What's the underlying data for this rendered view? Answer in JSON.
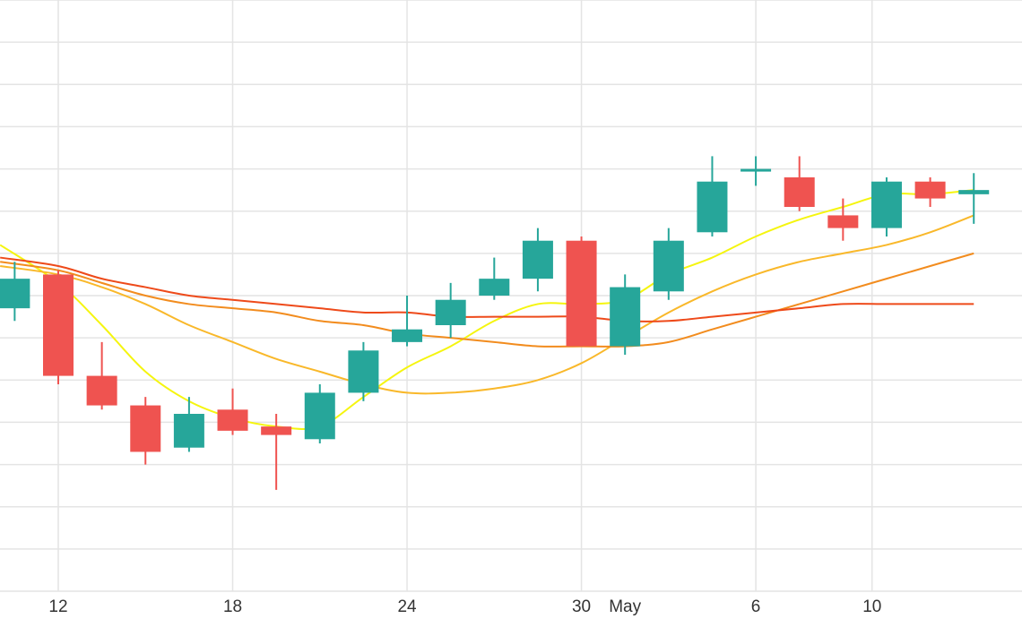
{
  "chart_data": {
    "type": "candlestick",
    "x_ticks": [
      {
        "day": 12,
        "label": "12"
      },
      {
        "day": 18,
        "label": "18"
      },
      {
        "day": 24,
        "label": "24"
      },
      {
        "day": 30,
        "label": "30"
      },
      {
        "day": 31.5,
        "label": "May"
      },
      {
        "day": 36,
        "label": "6"
      },
      {
        "day": 40,
        "label": "10"
      }
    ],
    "x_range": [
      10,
      43.5
    ],
    "y_range": [
      0,
      14
    ],
    "grid": true,
    "colors": {
      "up": "#26a69a",
      "down": "#ef5350",
      "grid": "#e4e4e4",
      "ma_yellow": "#f5f50f",
      "ma_gold": "#f9b82a",
      "ma_orange": "#f28c1e",
      "ma_red": "#ee4a1a"
    },
    "candles": [
      {
        "day": 10.5,
        "open": 6.7,
        "close": 7.4,
        "high": 7.8,
        "low": 6.4
      },
      {
        "day": 12,
        "open": 7.5,
        "close": 5.1,
        "high": 7.6,
        "low": 4.9
      },
      {
        "day": 13.5,
        "open": 5.1,
        "close": 4.4,
        "high": 5.9,
        "low": 4.3
      },
      {
        "day": 15,
        "open": 4.4,
        "close": 3.3,
        "high": 4.6,
        "low": 3.0
      },
      {
        "day": 16.5,
        "open": 3.4,
        "close": 4.2,
        "high": 4.6,
        "low": 3.3
      },
      {
        "day": 18,
        "open": 4.3,
        "close": 3.8,
        "high": 4.8,
        "low": 3.7
      },
      {
        "day": 19.5,
        "open": 3.9,
        "close": 3.7,
        "high": 4.2,
        "low": 2.4
      },
      {
        "day": 21,
        "open": 3.6,
        "close": 4.7,
        "high": 4.9,
        "low": 3.5
      },
      {
        "day": 22.5,
        "open": 4.7,
        "close": 5.7,
        "high": 5.9,
        "low": 4.5
      },
      {
        "day": 24,
        "open": 5.9,
        "close": 6.2,
        "high": 7.0,
        "low": 5.8
      },
      {
        "day": 25.5,
        "open": 6.3,
        "close": 6.9,
        "high": 7.3,
        "low": 6.0
      },
      {
        "day": 27,
        "open": 7.0,
        "close": 7.4,
        "high": 7.9,
        "low": 6.9
      },
      {
        "day": 28.5,
        "open": 7.4,
        "close": 8.3,
        "high": 8.6,
        "low": 7.1
      },
      {
        "day": 30,
        "open": 8.3,
        "close": 5.8,
        "high": 8.4,
        "low": 5.8
      },
      {
        "day": 31.5,
        "open": 5.8,
        "close": 7.2,
        "high": 7.5,
        "low": 5.6
      },
      {
        "day": 33,
        "open": 7.1,
        "close": 8.3,
        "high": 8.6,
        "low": 6.9
      },
      {
        "day": 34.5,
        "open": 8.5,
        "close": 9.7,
        "high": 10.3,
        "low": 8.4
      },
      {
        "day": 36,
        "open": 10.0,
        "close": 10.0,
        "high": 10.3,
        "low": 9.6
      },
      {
        "day": 37.5,
        "open": 9.8,
        "close": 9.1,
        "high": 10.3,
        "low": 9.0
      },
      {
        "day": 39,
        "open": 8.9,
        "close": 8.6,
        "high": 9.3,
        "low": 8.3
      },
      {
        "day": 40.5,
        "open": 8.6,
        "close": 9.7,
        "high": 9.8,
        "low": 8.4
      },
      {
        "day": 42,
        "open": 9.7,
        "close": 9.3,
        "high": 9.8,
        "low": 9.1
      },
      {
        "day": 43.5,
        "open": 9.4,
        "close": 9.5,
        "high": 9.9,
        "low": 8.7
      }
    ],
    "moving_averages": [
      {
        "color": "#f5f50f",
        "points": [
          [
            10,
            8.2
          ],
          [
            12,
            7.3
          ],
          [
            13.5,
            6.3
          ],
          [
            15,
            5.2
          ],
          [
            16.5,
            4.5
          ],
          [
            18,
            4.1
          ],
          [
            19.5,
            3.9
          ],
          [
            21,
            3.9
          ],
          [
            22.5,
            4.6
          ],
          [
            24,
            5.3
          ],
          [
            25.5,
            5.8
          ],
          [
            27,
            6.4
          ],
          [
            28.5,
            6.8
          ],
          [
            30,
            6.8
          ],
          [
            31.5,
            6.9
          ],
          [
            33,
            7.5
          ],
          [
            34.5,
            7.9
          ],
          [
            36,
            8.4
          ],
          [
            37.5,
            8.8
          ],
          [
            39,
            9.1
          ],
          [
            40.5,
            9.4
          ],
          [
            42,
            9.4
          ],
          [
            43.5,
            9.5
          ]
        ]
      },
      {
        "color": "#f9b82a",
        "points": [
          [
            10,
            7.7
          ],
          [
            12,
            7.5
          ],
          [
            13.5,
            7.2
          ],
          [
            15,
            6.8
          ],
          [
            16.5,
            6.3
          ],
          [
            18,
            5.9
          ],
          [
            19.5,
            5.5
          ],
          [
            21,
            5.2
          ],
          [
            22.5,
            4.9
          ],
          [
            24,
            4.7
          ],
          [
            25.5,
            4.7
          ],
          [
            27,
            4.8
          ],
          [
            28.5,
            5.0
          ],
          [
            30,
            5.4
          ],
          [
            31.5,
            6.0
          ],
          [
            33,
            6.6
          ],
          [
            34.5,
            7.1
          ],
          [
            36,
            7.5
          ],
          [
            37.5,
            7.8
          ],
          [
            39,
            8.0
          ],
          [
            40.5,
            8.2
          ],
          [
            42,
            8.5
          ],
          [
            43.5,
            8.9
          ]
        ]
      },
      {
        "color": "#f28c1e",
        "points": [
          [
            10,
            7.8
          ],
          [
            12,
            7.6
          ],
          [
            13.5,
            7.3
          ],
          [
            15,
            7.0
          ],
          [
            16.5,
            6.8
          ],
          [
            18,
            6.7
          ],
          [
            19.5,
            6.6
          ],
          [
            21,
            6.4
          ],
          [
            22.5,
            6.3
          ],
          [
            24,
            6.1
          ],
          [
            25.5,
            6.0
          ],
          [
            27,
            5.9
          ],
          [
            28.5,
            5.8
          ],
          [
            30,
            5.8
          ],
          [
            31.5,
            5.8
          ],
          [
            33,
            5.9
          ],
          [
            34.5,
            6.2
          ],
          [
            36,
            6.5
          ],
          [
            37.5,
            6.8
          ],
          [
            39,
            7.1
          ],
          [
            40.5,
            7.4
          ],
          [
            42,
            7.7
          ],
          [
            43.5,
            8.0
          ]
        ]
      },
      {
        "color": "#ee4a1a",
        "points": [
          [
            10,
            7.9
          ],
          [
            12,
            7.7
          ],
          [
            13.5,
            7.4
          ],
          [
            15,
            7.2
          ],
          [
            16.5,
            7.0
          ],
          [
            18,
            6.9
          ],
          [
            19.5,
            6.8
          ],
          [
            21,
            6.7
          ],
          [
            22.5,
            6.6
          ],
          [
            24,
            6.6
          ],
          [
            25.5,
            6.5
          ],
          [
            27,
            6.5
          ],
          [
            28.5,
            6.5
          ],
          [
            30,
            6.5
          ],
          [
            31.5,
            6.4
          ],
          [
            33,
            6.4
          ],
          [
            34.5,
            6.5
          ],
          [
            36,
            6.6
          ],
          [
            37.5,
            6.7
          ],
          [
            39,
            6.8
          ],
          [
            40.5,
            6.8
          ],
          [
            42,
            6.8
          ],
          [
            43.5,
            6.8
          ]
        ]
      }
    ]
  }
}
